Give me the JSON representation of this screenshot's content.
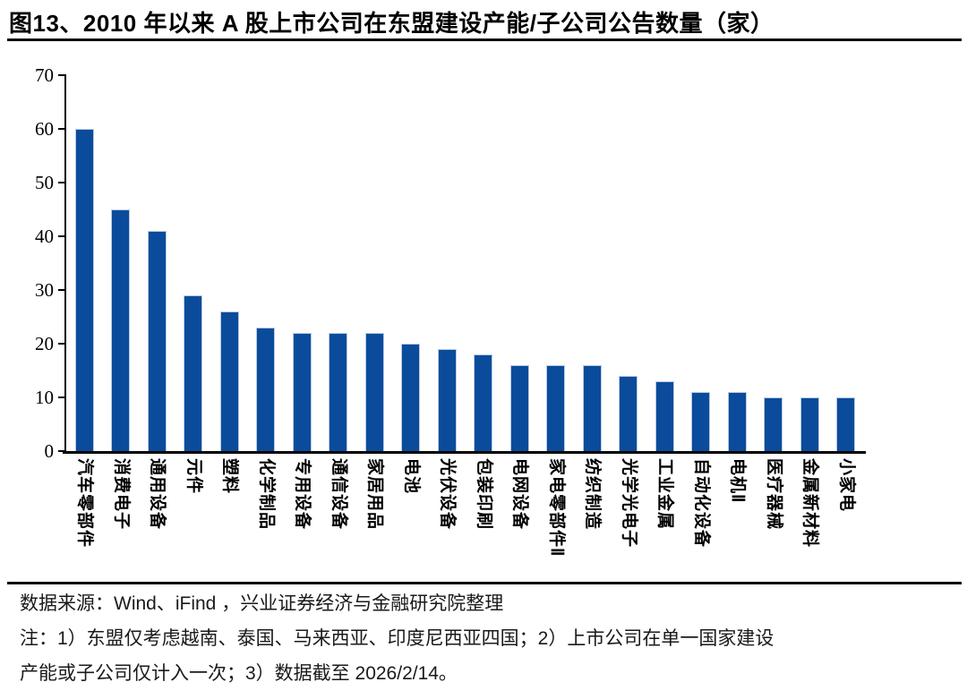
{
  "title": "图13、2010 年以来 A 股上市公司在东盟建设产能/子公司公告数量（家）",
  "chart_data": {
    "type": "bar",
    "title": "2010 年以来 A 股上市公司在东盟建设产能/子公司公告数量（家）",
    "categories": [
      "汽车零部件",
      "消费电子",
      "通用设备",
      "元件",
      "塑料",
      "化学制品",
      "专用设备",
      "通信设备",
      "家居用品",
      "电池",
      "光伏设备",
      "包装印刷",
      "电网设备",
      "家电零部件Ⅱ",
      "纺织制造",
      "光学光电子",
      "工业金属",
      "自动化设备",
      "电机Ⅱ",
      "医疗器械",
      "金属新材料",
      "小家电"
    ],
    "values": [
      60,
      45,
      41,
      29,
      26,
      23,
      22,
      22,
      22,
      20,
      19,
      18,
      16,
      16,
      16,
      14,
      13,
      11,
      11,
      10,
      10,
      10
    ],
    "xlabel": "",
    "ylabel": "",
    "ylim": [
      0,
      70
    ],
    "yticks": [
      0,
      10,
      20,
      30,
      40,
      50,
      60,
      70
    ],
    "grid": false,
    "legend": "none",
    "bar_color": "#0a4c9b",
    "bar_edge_color": "#b9c9e6",
    "axis_color": "#000000"
  },
  "footer": {
    "source": "数据来源：Wind、iFind ，兴业证券经济与金融研究院整理",
    "note_line1": "注：1）东盟仅考虑越南、泰国、马来西亚、印度尼西亚四国；2）上市公司在单一国家建设",
    "note_line2": "产能或子公司仅计入一次；3）数据截至 2026/2/14。"
  }
}
